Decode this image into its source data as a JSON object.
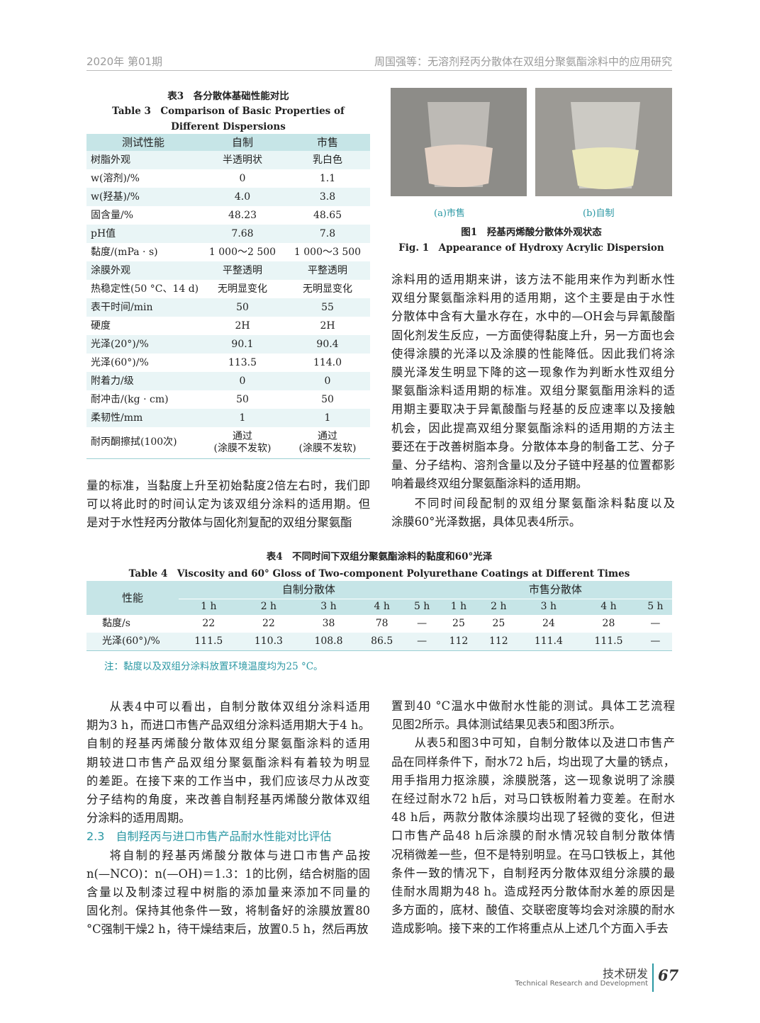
{
  "header": {
    "issue": "2020年 第01期",
    "running_title": "周国强等：无溶剂羟丙分散体在双组分聚氨酯涂料中的应用研究"
  },
  "table3": {
    "title_cn": "表3　各分散体基础性能对比",
    "title_en": "Table 3　Comparison of Basic Properties of Different Dispersions",
    "columns": [
      "测试性能",
      "自制",
      "市售"
    ],
    "rows": [
      [
        "树脂外观",
        "半透明状",
        "乳白色"
      ],
      [
        "w(溶剂)/%",
        "0",
        "1.1"
      ],
      [
        "w(羟基)/%",
        "4.0",
        "3.8"
      ],
      [
        "固含量/%",
        "48.23",
        "48.65"
      ],
      [
        "pH值",
        "7.68",
        "7.8"
      ],
      [
        "黏度/(mPa · s)",
        "1 000～2 500",
        "1 000～3 500"
      ],
      [
        "涂膜外观",
        "平整透明",
        "平整透明"
      ],
      [
        "热稳定性(50 °C、14 d)",
        "无明显变化",
        "无明显变化"
      ],
      [
        "表干时间/min",
        "50",
        "55"
      ],
      [
        "硬度",
        "2H",
        "2H"
      ],
      [
        "光泽(20°)/%",
        "90.1",
        "90.4"
      ],
      [
        "光泽(60°)/%",
        "113.5",
        "114.0"
      ],
      [
        "附着力/级",
        "0",
        "0"
      ],
      [
        "耐冲击/(kg · cm)",
        "50",
        "50"
      ],
      [
        "柔韧性/mm",
        "1",
        "1"
      ],
      [
        "耐丙酮擦拭(100次)",
        "通过\n(涂膜不发软)",
        "通过\n(涂膜不发软)"
      ]
    ]
  },
  "figure1": {
    "panels": [
      "(a)市售",
      "(b)自制"
    ],
    "caption_cn": "图1　羟基丙烯酸分散体外观状态",
    "caption_en": "Fig. 1　Appearance of Hydroxy Acrylic Dispersion"
  },
  "table4": {
    "title_cn": "表4　不同时间下双组分聚氨酯涂料的黏度和60°光泽",
    "title_en": "Table 4　Viscosity and 60° Gloss of Two-component Polyurethane Coatings at Different Times",
    "row_header": "性能",
    "groups": [
      "自制分散体",
      "市售分散体"
    ],
    "times": [
      [
        "1 h",
        "2 h",
        "3 h",
        "4 h",
        "5 h"
      ],
      [
        "1 h",
        "2 h",
        "3 h",
        "4 h",
        "5 h"
      ]
    ],
    "rows": [
      {
        "label": "黏度/s",
        "cells": [
          "22",
          "22",
          "38",
          "78",
          "—",
          "25",
          "25",
          "24",
          "28",
          "—"
        ]
      },
      {
        "label": "光泽(60°)/%",
        "cells": [
          "111.5",
          "110.3",
          "108.8",
          "86.5",
          "—",
          "112",
          "112",
          "111.4",
          "111.5",
          "—"
        ]
      }
    ],
    "note": "注：黏度以及双组分涂料放置环境温度均为25 °C。"
  },
  "body": {
    "left_top": [
      [
        "量的标准，当黏度上升至初始黏度2倍左右时，我们即",
        "可以将此时的时间认定为该双组分涂料的适用期。但",
        "是对于水性羟丙分散体与固化剂复配的双组分聚氨酯"
      ]
    ],
    "right_top": [
      [
        "涂料用的适用期来讲，该方法不能用来作为判断水性",
        "双组分聚氨酯涂料用的适用期，这个主要是由于水性",
        "分散体中含有大量水存在，水中的—OH会与异氰酸酯",
        "固化剂发生反应，一方面使得黏度上升，另一方面也会",
        "使得涂膜的光泽以及涂膜的性能降低。因此我们将涂",
        "膜光泽发生明显下降的这一现象作为判断水性双组分",
        "聚氨酯涂料适用期的标准。双组分聚氨酯用涂料的适",
        "用期主要取决于异氰酸酯与羟基的反应速率以及接触",
        "机会，因此提高双组分聚氨酯涂料的适用期的方法主",
        "要还在于改善树脂本身。分散体本身的制备工艺、分子",
        "量、分子结构、溶剂含量以及分子链中羟基的位置都影",
        "响着最终双组分聚氨酯涂料的适用期。"
      ],
      [
        "不同时间段配制的双组分聚氨酯涂料黏度以及",
        "涂膜60°光泽数据，具体见表4所示。"
      ]
    ],
    "left_bottom": [
      [
        "从表4中可以看出，自制分散体双组分涂料适用",
        "期为3 h，而进口市售产品双组分涂料适用期大于4 h。",
        "自制的羟基丙烯酸分散体双组分聚氨酯涂料的适用",
        "期较进口市售产品双组分聚氨酯涂料有着较为明显",
        "的差距。在接下来的工作当中，我们应该尽力从改变",
        "分子结构的角度，来改善自制羟基丙烯酸分散体双组",
        "分涂料的适用周期。"
      ]
    ],
    "heading": "2.3　自制羟丙与进口市售产品耐水性能对比评估",
    "left_bottom_2": [
      [
        "将自制的羟基丙烯酸分散体与进口市售产品按",
        "n(—NCO)：n(—OH)＝1.3：1的比例，结合树脂的固",
        "含量以及制漆过程中树脂的添加量来添加不同量的",
        "固化剂。保持其他条件一致，将制备好的涂膜放置80",
        "°C强制干燥2 h，待干燥结束后，放置0.5 h，然后再放"
      ]
    ],
    "right_bottom": [
      [
        "置到40 °C温水中做耐水性能的测试。具体工艺流程",
        "见图2所示。具体测试结果见表5和图3所示。"
      ],
      [
        "从表5和图3中可知，自制分散体以及进口市售产",
        "品在同样条件下，耐水72 h后，均出现了大量的锈点，",
        "用手指用力抠涂膜，涂膜脱落，这一现象说明了涂膜",
        "在经过耐水72 h后，对马口铁板附着力变差。在耐水",
        "48 h后，两款分散体涂膜均出现了轻微的变化，但进",
        "口市售产品48 h后涂膜的耐水情况较自制分散体情",
        "况稍微差一些，但不是特别明显。在马口铁板上，其他",
        "条件一致的情况下，自制羟丙分散体双组分涂膜的最",
        "佳耐水周期为48 h。造成羟丙分散体耐水差的原因是",
        "多方面的，底材、酸值、交联密度等均会对涂膜的耐水",
        "造成影响。接下来的工作将重点从上述几个方面入手去"
      ]
    ]
  },
  "footer": {
    "section": "技术研发",
    "section_en": "Technical Research and Development",
    "page": "67"
  }
}
